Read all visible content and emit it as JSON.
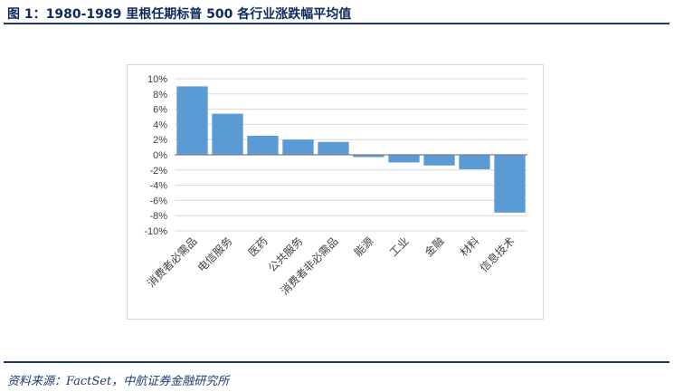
{
  "header": {
    "title": "图 1：1980-1989 里根任期标普 500 各行业涨跌幅平均值"
  },
  "footer": {
    "source": "资料来源：FactSet，中航证券金融研究所"
  },
  "colors": {
    "bar": "#5b9bd5",
    "grid": "#d9d9d9",
    "axis": "#7f7f7f",
    "rule": "#1f3a6e"
  },
  "chart_data": {
    "type": "bar",
    "categories": [
      "消费者必需品",
      "电信服务",
      "医药",
      "公共服务",
      "消费者非必需品",
      "能源",
      "工业",
      "金融",
      "材料",
      "信息技术"
    ],
    "values": [
      9.0,
      5.4,
      2.5,
      2.0,
      1.7,
      -0.3,
      -1.0,
      -1.4,
      -1.9,
      -7.6
    ],
    "ylim": [
      -10,
      10
    ],
    "yticks": [
      10,
      8,
      6,
      4,
      2,
      0,
      -2,
      -4,
      -6,
      -8,
      -10
    ],
    "ytick_labels": [
      "10%",
      "8%",
      "6%",
      "4%",
      "2%",
      "0%",
      "-2%",
      "-4%",
      "-6%",
      "-8%",
      "-10%"
    ],
    "grid": true,
    "legend": "none"
  }
}
